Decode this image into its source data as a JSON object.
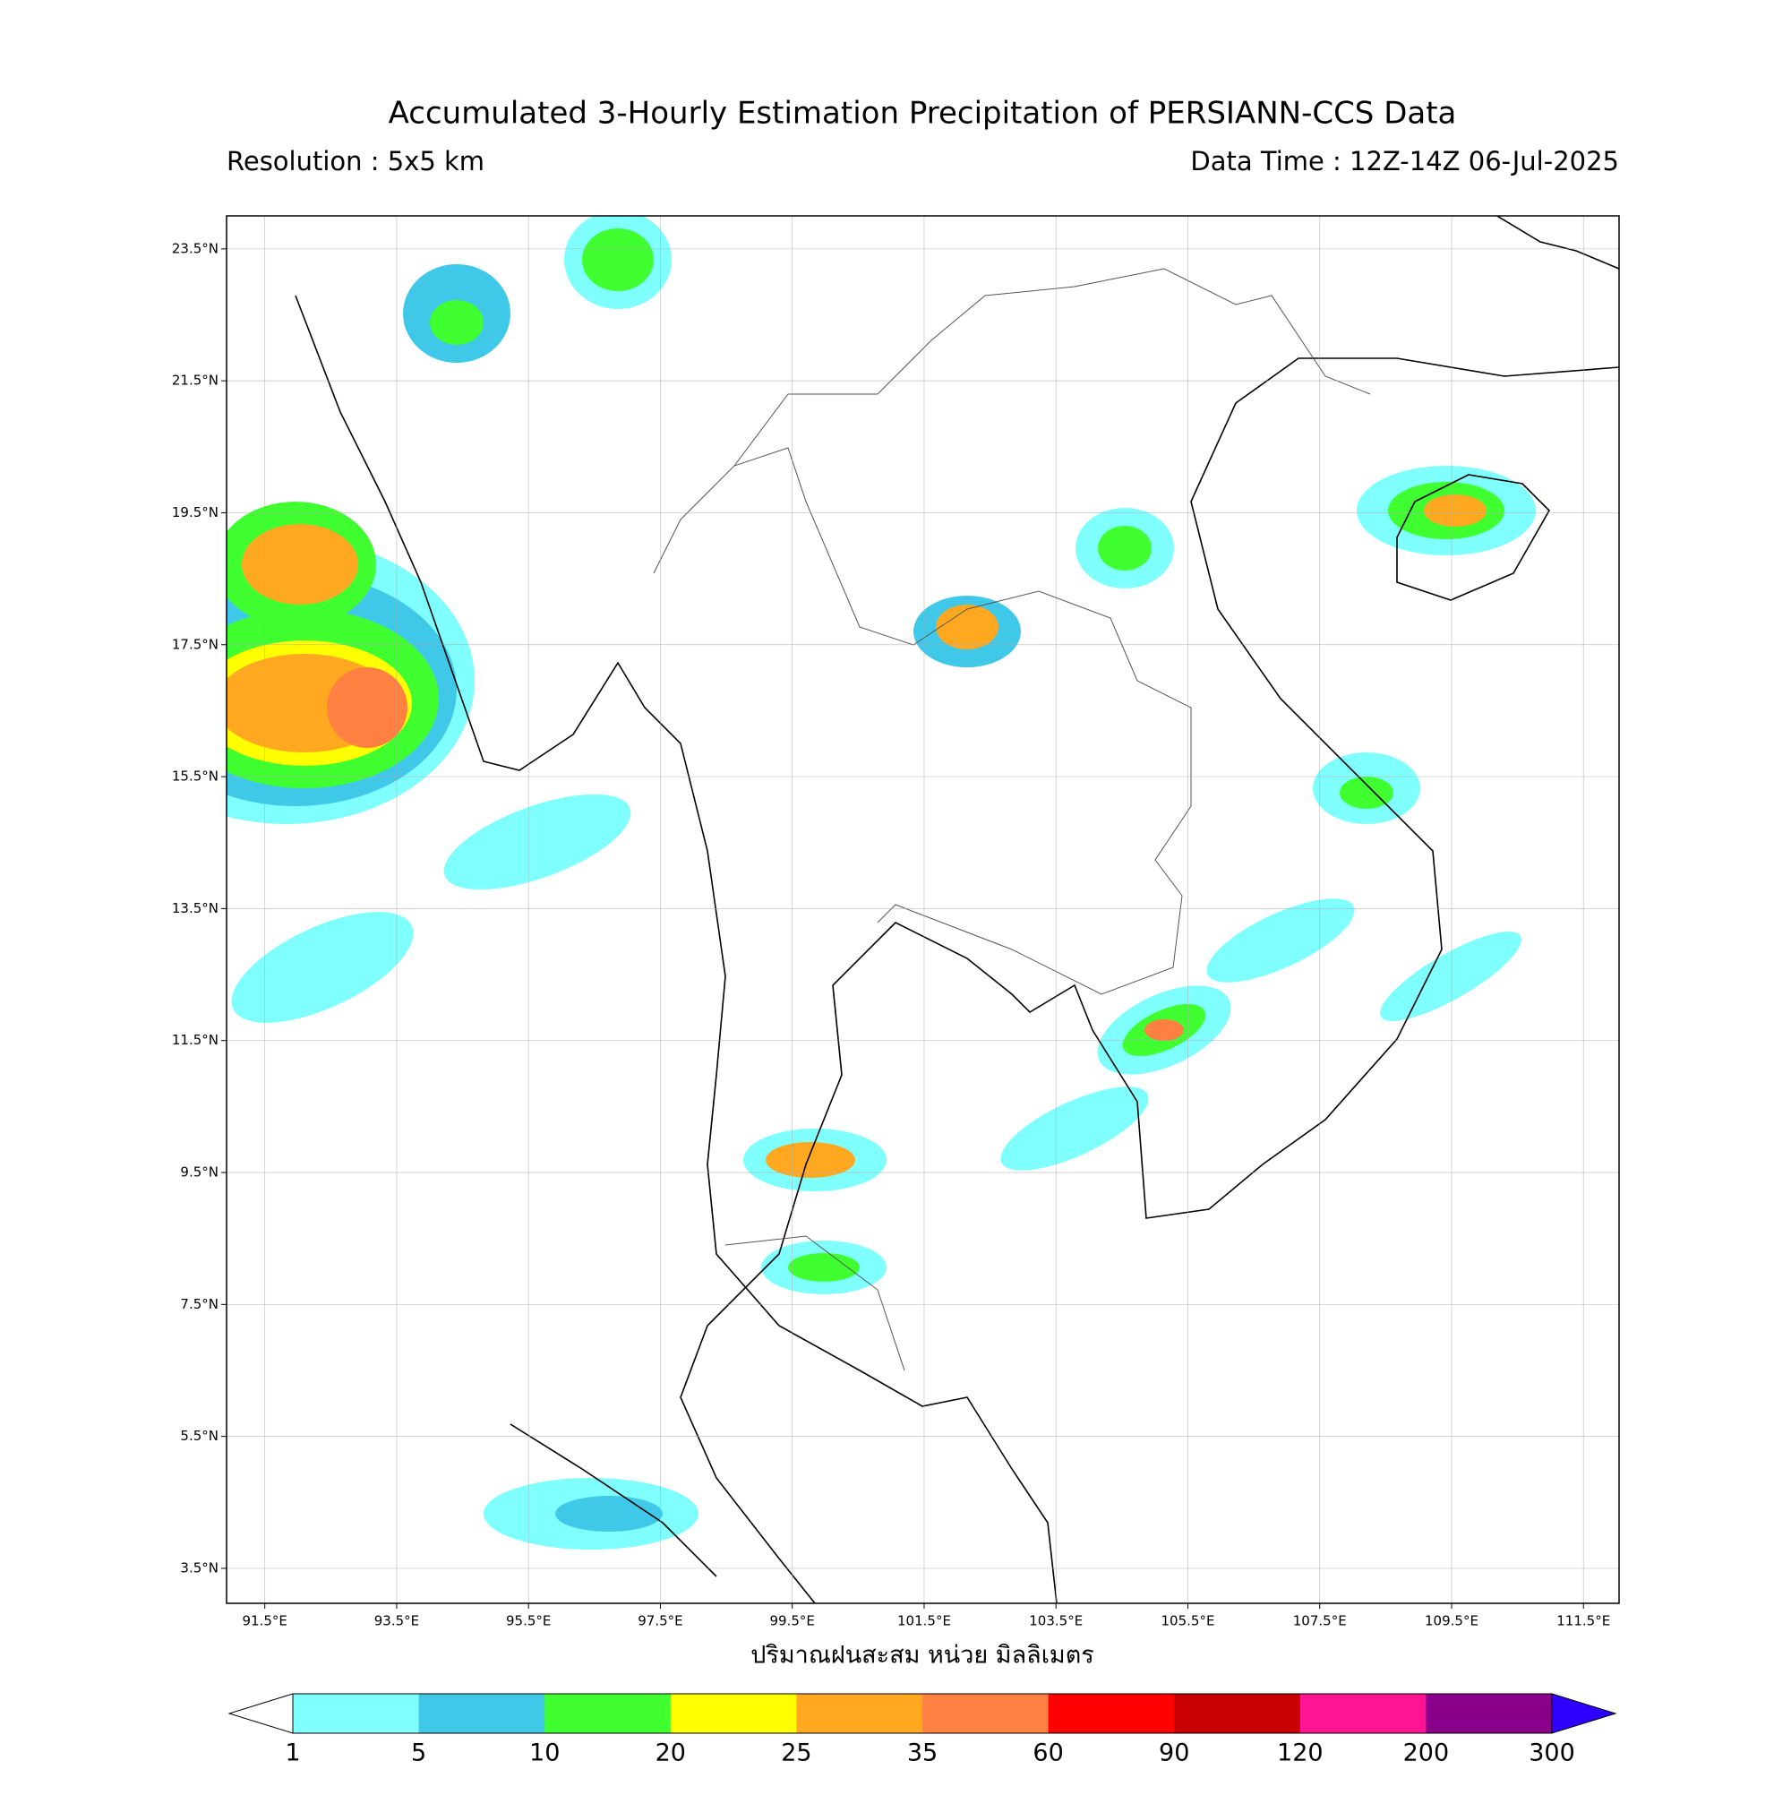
{
  "map": {
    "title": "Accumulated 3-Hourly Estimation Precipitation of PERSIANN-CCS Data",
    "resolution": "Resolution : 5x5 km",
    "data_time": "Data Time : 12Z-14Z 06-Jul-2025",
    "lon_range": [
      90.92,
      112.04
    ],
    "lat_range": [
      2.97,
      24.0
    ],
    "lon_ticks": [
      {
        "value": 91.5,
        "label": "91.5°E"
      },
      {
        "value": 93.5,
        "label": "93.5°E"
      },
      {
        "value": 95.5,
        "label": "95.5°E"
      },
      {
        "value": 97.5,
        "label": "97.5°E"
      },
      {
        "value": 99.5,
        "label": "99.5°E"
      },
      {
        "value": 101.5,
        "label": "101.5°E"
      },
      {
        "value": 103.5,
        "label": "103.5°E"
      },
      {
        "value": 105.5,
        "label": "105.5°E"
      },
      {
        "value": 107.5,
        "label": "107.5°E"
      },
      {
        "value": 109.5,
        "label": "109.5°E"
      },
      {
        "value": 111.5,
        "label": "111.5°E"
      }
    ],
    "lat_ticks": [
      {
        "value": 23.5,
        "label": "23.5°N"
      },
      {
        "value": 21.5,
        "label": "21.5°N"
      },
      {
        "value": 19.5,
        "label": "19.5°N"
      },
      {
        "value": 17.5,
        "label": "17.5°N"
      },
      {
        "value": 15.5,
        "label": "15.5°N"
      },
      {
        "value": 13.5,
        "label": "13.5°N"
      },
      {
        "value": 11.5,
        "label": "11.5°N"
      },
      {
        "value": 9.5,
        "label": "9.5°N"
      },
      {
        "value": 7.5,
        "label": "7.5°N"
      },
      {
        "value": 5.5,
        "label": "5.5°N"
      },
      {
        "value": 3.5,
        "label": "3.5°N"
      }
    ],
    "grid": true,
    "xlabel": "ปริมาณฝนสะสม หน่วย มิลลิเมตร",
    "colorbar": {
      "levels": [
        1,
        5,
        10,
        20,
        25,
        35,
        60,
        90,
        120,
        200,
        300
      ],
      "colors": [
        "#80ffff",
        "#40c8e8",
        "#40ff30",
        "#ffff00",
        "#ffa820",
        "#ff8040",
        "#ff0000",
        "#c80000",
        "#ff1493",
        "#8b008b"
      ],
      "under_color": "#ffffff",
      "over_color": "#3000ff"
    }
  }
}
